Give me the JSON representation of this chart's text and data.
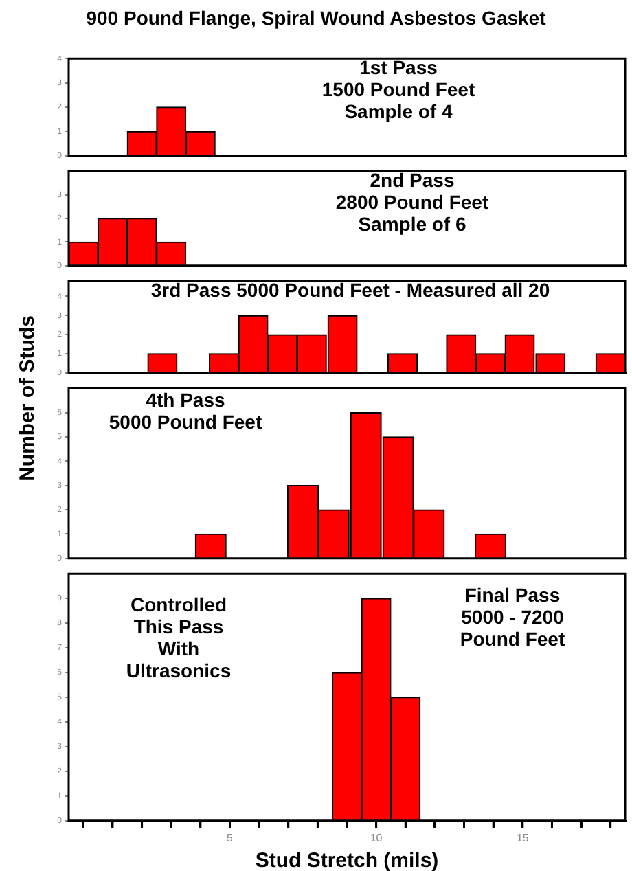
{
  "chart_data": [
    {
      "type": "histogram",
      "title": "900 Pound Flange, Spiral Wound Asbestos Gasket",
      "annotations": [
        "1st Pass\n1500 Pound Feet\nSample of 4"
      ],
      "bins": [
        1.5,
        2.5,
        3.5,
        4.5
      ],
      "values": [
        1,
        2,
        1
      ],
      "color": "#ff0000",
      "xlim": [
        -0.5,
        18.5
      ],
      "ylim": [
        0,
        4
      ],
      "yticks": [
        0,
        1,
        2,
        3,
        4
      ],
      "tick_labels": "y"
    },
    {
      "type": "histogram",
      "annotations": [
        "2nd Pass\n2800 Pound Feet\nSample of 6"
      ],
      "bins": [
        -0.5,
        0.5,
        1.5,
        2.5,
        3.5
      ],
      "values": [
        1,
        2,
        2,
        1
      ],
      "color": "#ff0000",
      "xlim": [
        -0.5,
        18.5
      ],
      "ylim": [
        0,
        4
      ],
      "yticks": [
        0,
        1,
        2,
        3
      ],
      "tick_labels": "y"
    },
    {
      "type": "histogram",
      "annotations": [
        "3rd Pass 5000 Pound Feet - Measured all 20"
      ],
      "bins": [
        2.2,
        3.2,
        4.3,
        5.3,
        6.3,
        7.3,
        8.3,
        9.4,
        10.4,
        11.4,
        12.4,
        13.4,
        14.4,
        15.4,
        16.5,
        17.5,
        18.5
      ],
      "values": [
        1,
        0,
        1,
        3,
        2,
        2,
        3,
        0,
        1,
        0,
        2,
        1,
        2,
        1,
        0,
        1
      ],
      "color": "#ff0000",
      "xlim": [
        -0.5,
        18.5
      ],
      "ylim": [
        0,
        4.8
      ],
      "yticks": [
        0,
        1,
        2,
        3,
        4
      ],
      "tick_labels": "y"
    },
    {
      "type": "histogram",
      "ylabel": "Number of Studs",
      "annotations": [
        "4th Pass\n5000 Pound Feet"
      ],
      "bins": [
        3.8,
        4.9,
        5.9,
        7.0,
        8.0,
        9.1,
        10.2,
        11.3,
        12.3,
        13.4,
        14.4
      ],
      "values": [
        1,
        0,
        0,
        3,
        2,
        6,
        5,
        2,
        0,
        1
      ],
      "color": "#ff0000",
      "xlim": [
        -0.5,
        18.5
      ],
      "ylim": [
        0,
        7
      ],
      "yticks": [
        0,
        1,
        2,
        3,
        4,
        5,
        6
      ],
      "tick_labels": "y"
    },
    {
      "type": "histogram",
      "xlabel": "Stud Stretch (mils)",
      "annotations": [
        "Controlled\nThis Pass\nWith\nUltrasonics",
        "Final Pass\n5000 - 7200\nPound Feet"
      ],
      "bins": [
        8.5,
        9.5,
        10.5,
        11.5
      ],
      "values": [
        6,
        9,
        5
      ],
      "color": "#ff0000",
      "xlim": [
        -0.5,
        18.5
      ],
      "xticks": [
        {
          "value": 0,
          "label": null
        },
        {
          "value": 1,
          "label": null
        },
        {
          "value": 2,
          "label": null
        },
        {
          "value": 3,
          "label": null
        },
        {
          "value": 4,
          "label": null
        },
        5,
        {
          "value": 6,
          "label": null
        },
        {
          "value": 7,
          "label": null
        },
        {
          "value": 8,
          "label": null
        },
        {
          "value": 9,
          "label": null
        },
        10,
        {
          "value": 11,
          "label": null
        },
        {
          "value": 12,
          "label": null
        },
        {
          "value": 13,
          "label": null
        },
        {
          "value": 14,
          "label": null
        },
        15,
        {
          "value": 16,
          "label": null
        },
        {
          "value": 17,
          "label": null
        },
        {
          "value": 18,
          "label": null
        }
      ],
      "ylim": [
        0,
        10
      ],
      "yticks": [
        0,
        1,
        2,
        3,
        4,
        5,
        6,
        7,
        8,
        9
      ]
    }
  ]
}
